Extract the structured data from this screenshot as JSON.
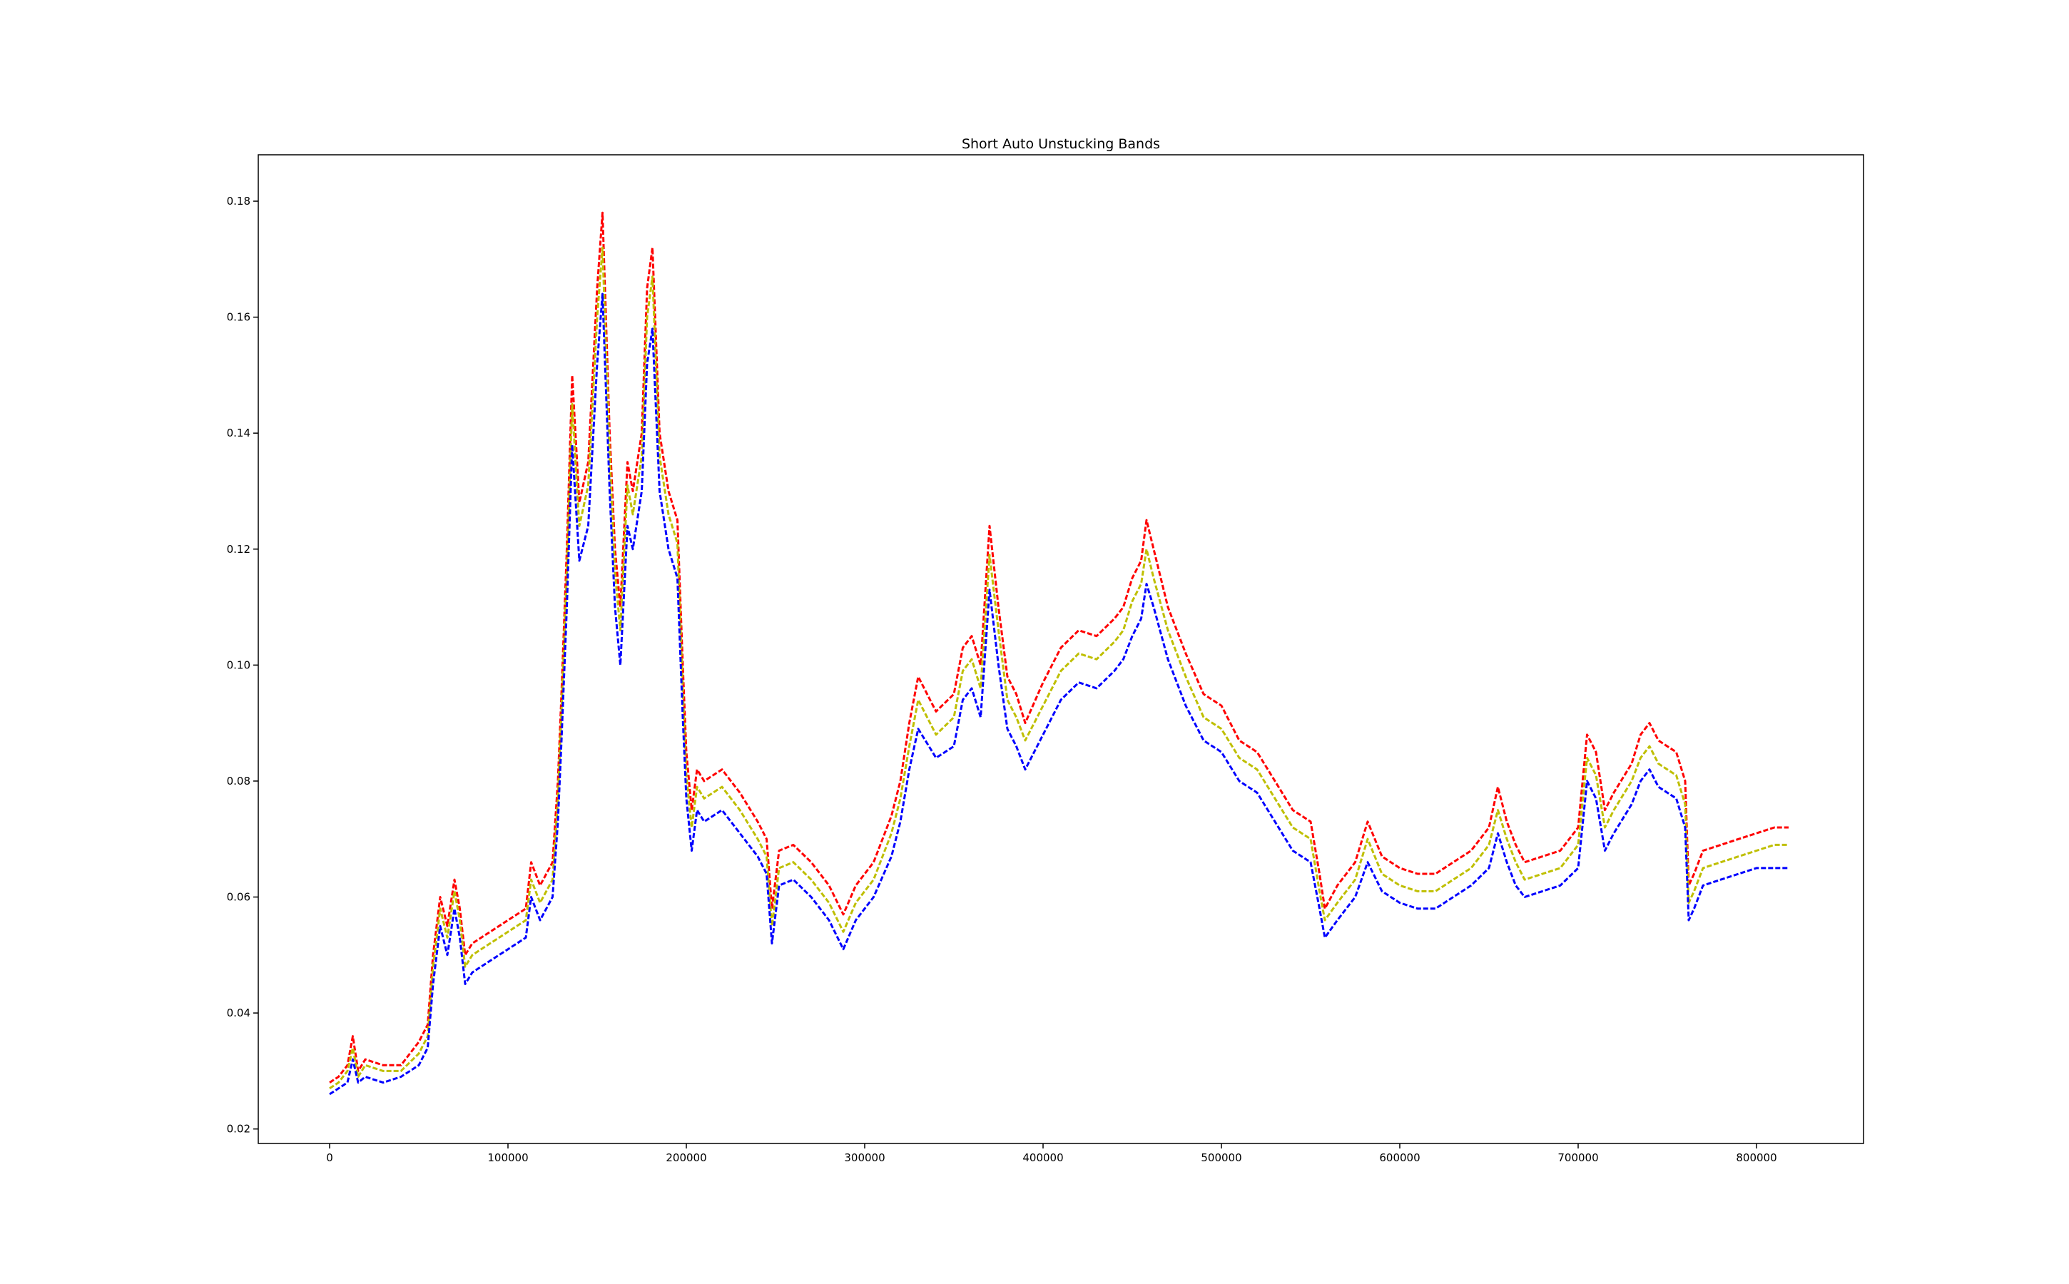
{
  "chart_data": {
    "type": "line",
    "title": "Short Auto Unstucking Bands",
    "xlabel": "",
    "ylabel": "",
    "xlim": [
      -40000,
      860000
    ],
    "ylim": [
      0.0175,
      0.188
    ],
    "x_ticks": [
      0,
      100000,
      200000,
      300000,
      400000,
      500000,
      600000,
      700000,
      800000
    ],
    "x_tick_labels": [
      "0",
      "100000",
      "200000",
      "300000",
      "400000",
      "500000",
      "600000",
      "700000",
      "800000"
    ],
    "y_ticks": [
      0.02,
      0.04,
      0.06,
      0.08,
      0.1,
      0.12,
      0.14,
      0.16,
      0.18
    ],
    "y_tick_labels": [
      "0.02",
      "0.04",
      "0.06",
      "0.08",
      "0.10",
      "0.12",
      "0.14",
      "0.16",
      "0.18"
    ],
    "grid": false,
    "legend": "none",
    "colors": {
      "upper": "#ff0000",
      "middle": "#bfbf00",
      "lower": "#0000ff",
      "axes": "#000000",
      "background": "#ffffff"
    },
    "x": [
      0,
      5000,
      10000,
      13000,
      16000,
      20000,
      30000,
      40000,
      50000,
      55000,
      58000,
      62000,
      66000,
      70000,
      73000,
      76000,
      80000,
      90000,
      100000,
      110000,
      113000,
      118000,
      125000,
      128000,
      130000,
      133000,
      136000,
      140000,
      145000,
      150000,
      153000,
      157000,
      160000,
      163000,
      167000,
      170000,
      175000,
      178000,
      181000,
      185000,
      190000,
      195000,
      198000,
      200000,
      203000,
      206000,
      210000,
      220000,
      230000,
      240000,
      245000,
      248000,
      252000,
      260000,
      270000,
      280000,
      288000,
      295000,
      305000,
      315000,
      320000,
      325000,
      330000,
      340000,
      350000,
      355000,
      360000,
      365000,
      370000,
      375000,
      380000,
      385000,
      390000,
      400000,
      410000,
      420000,
      430000,
      440000,
      445000,
      450000,
      455000,
      458000,
      462000,
      470000,
      480000,
      490000,
      500000,
      510000,
      520000,
      530000,
      540000,
      550000,
      555000,
      558000,
      565000,
      575000,
      582000,
      590000,
      600000,
      610000,
      620000,
      630000,
      640000,
      650000,
      655000,
      660000,
      665000,
      670000,
      680000,
      690000,
      700000,
      705000,
      710000,
      715000,
      720000,
      730000,
      735000,
      740000,
      745000,
      750000,
      755000,
      760000,
      762000,
      765000,
      770000,
      780000,
      790000,
      800000,
      810000,
      818000
    ],
    "series": [
      {
        "role": "upper",
        "values": [
          0.028,
          0.029,
          0.031,
          0.036,
          0.03,
          0.032,
          0.031,
          0.031,
          0.035,
          0.038,
          0.05,
          0.06,
          0.055,
          0.063,
          0.058,
          0.05,
          0.052,
          0.054,
          0.056,
          0.058,
          0.066,
          0.062,
          0.066,
          0.08,
          0.095,
          0.12,
          0.15,
          0.128,
          0.135,
          0.165,
          0.178,
          0.14,
          0.12,
          0.11,
          0.135,
          0.13,
          0.14,
          0.165,
          0.172,
          0.14,
          0.13,
          0.125,
          0.1,
          0.085,
          0.075,
          0.082,
          0.08,
          0.082,
          0.078,
          0.073,
          0.07,
          0.058,
          0.068,
          0.069,
          0.066,
          0.062,
          0.057,
          0.062,
          0.066,
          0.074,
          0.08,
          0.09,
          0.098,
          0.092,
          0.095,
          0.103,
          0.105,
          0.1,
          0.124,
          0.11,
          0.098,
          0.095,
          0.09,
          0.097,
          0.103,
          0.106,
          0.105,
          0.108,
          0.11,
          0.115,
          0.118,
          0.125,
          0.12,
          0.11,
          0.102,
          0.095,
          0.093,
          0.087,
          0.085,
          0.08,
          0.075,
          0.073,
          0.064,
          0.058,
          0.062,
          0.066,
          0.073,
          0.067,
          0.065,
          0.064,
          0.064,
          0.066,
          0.068,
          0.072,
          0.079,
          0.073,
          0.069,
          0.066,
          0.067,
          0.068,
          0.072,
          0.088,
          0.085,
          0.075,
          0.078,
          0.083,
          0.088,
          0.09,
          0.087,
          0.086,
          0.085,
          0.08,
          0.062,
          0.064,
          0.068,
          0.069,
          0.07,
          0.071,
          0.072,
          0.072
        ]
      },
      {
        "role": "middle",
        "values": [
          0.027,
          0.028,
          0.03,
          0.034,
          0.029,
          0.031,
          0.03,
          0.03,
          0.033,
          0.036,
          0.048,
          0.058,
          0.053,
          0.061,
          0.056,
          0.048,
          0.05,
          0.052,
          0.054,
          0.056,
          0.063,
          0.059,
          0.063,
          0.077,
          0.092,
          0.116,
          0.145,
          0.124,
          0.131,
          0.16,
          0.172,
          0.136,
          0.116,
          0.106,
          0.131,
          0.126,
          0.136,
          0.16,
          0.167,
          0.136,
          0.126,
          0.121,
          0.096,
          0.081,
          0.072,
          0.079,
          0.077,
          0.079,
          0.075,
          0.07,
          0.067,
          0.055,
          0.065,
          0.066,
          0.063,
          0.059,
          0.054,
          0.059,
          0.063,
          0.071,
          0.077,
          0.086,
          0.094,
          0.088,
          0.091,
          0.099,
          0.101,
          0.096,
          0.119,
          0.106,
          0.094,
          0.091,
          0.087,
          0.093,
          0.099,
          0.102,
          0.101,
          0.104,
          0.106,
          0.111,
          0.114,
          0.12,
          0.115,
          0.106,
          0.098,
          0.091,
          0.089,
          0.084,
          0.082,
          0.077,
          0.072,
          0.07,
          0.061,
          0.056,
          0.059,
          0.063,
          0.07,
          0.064,
          0.062,
          0.061,
          0.061,
          0.063,
          0.065,
          0.069,
          0.075,
          0.07,
          0.066,
          0.063,
          0.064,
          0.065,
          0.069,
          0.084,
          0.081,
          0.072,
          0.075,
          0.08,
          0.084,
          0.086,
          0.083,
          0.082,
          0.081,
          0.076,
          0.059,
          0.061,
          0.065,
          0.066,
          0.067,
          0.068,
          0.069,
          0.069
        ]
      },
      {
        "role": "lower",
        "values": [
          0.026,
          0.027,
          0.028,
          0.032,
          0.028,
          0.029,
          0.028,
          0.029,
          0.031,
          0.034,
          0.045,
          0.055,
          0.05,
          0.058,
          0.053,
          0.045,
          0.047,
          0.049,
          0.051,
          0.053,
          0.06,
          0.056,
          0.06,
          0.073,
          0.087,
          0.11,
          0.138,
          0.118,
          0.124,
          0.152,
          0.164,
          0.13,
          0.11,
          0.1,
          0.124,
          0.12,
          0.13,
          0.152,
          0.158,
          0.13,
          0.12,
          0.115,
          0.091,
          0.077,
          0.068,
          0.075,
          0.073,
          0.075,
          0.071,
          0.067,
          0.064,
          0.052,
          0.062,
          0.063,
          0.06,
          0.056,
          0.051,
          0.056,
          0.06,
          0.067,
          0.073,
          0.082,
          0.089,
          0.084,
          0.086,
          0.094,
          0.096,
          0.091,
          0.113,
          0.1,
          0.089,
          0.086,
          0.082,
          0.088,
          0.094,
          0.097,
          0.096,
          0.099,
          0.101,
          0.105,
          0.108,
          0.114,
          0.11,
          0.101,
          0.093,
          0.087,
          0.085,
          0.08,
          0.078,
          0.073,
          0.068,
          0.066,
          0.058,
          0.053,
          0.056,
          0.06,
          0.066,
          0.061,
          0.059,
          0.058,
          0.058,
          0.06,
          0.062,
          0.065,
          0.071,
          0.066,
          0.062,
          0.06,
          0.061,
          0.062,
          0.065,
          0.08,
          0.077,
          0.068,
          0.071,
          0.076,
          0.08,
          0.082,
          0.079,
          0.078,
          0.077,
          0.072,
          0.056,
          0.058,
          0.062,
          0.063,
          0.064,
          0.065,
          0.065,
          0.065
        ]
      }
    ]
  }
}
